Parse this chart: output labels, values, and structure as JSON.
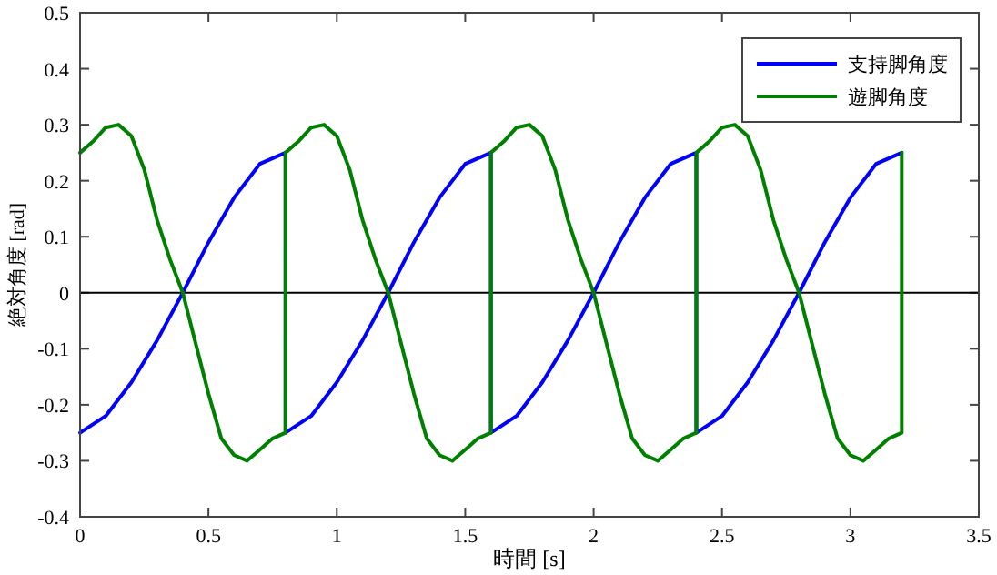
{
  "chart_data": {
    "type": "line",
    "xlabel": "時間 [s]",
    "ylabel": "絶対角度 [rad]",
    "xlim": [
      0,
      3.5
    ],
    "xticks": [
      0,
      0.5,
      1,
      1.5,
      2,
      2.5,
      3,
      3.5
    ],
    "ylim": [
      -0.4,
      0.5
    ],
    "yticks": [
      -0.4,
      -0.3,
      -0.2,
      -0.1,
      0,
      0.1,
      0.2,
      0.3,
      0.4,
      0.5
    ],
    "grid": false,
    "legend": "top right",
    "marker": "none",
    "line_style": "solid",
    "ref_lines": [
      {
        "axis": "y",
        "value": 0,
        "color": "#000000"
      }
    ],
    "series": [
      {
        "name": "支持脚角度",
        "color": "#0000ff",
        "x": [
          0,
          0.1,
          0.2,
          0.3,
          0.4,
          0.5,
          0.6,
          0.7,
          0.8,
          0.8,
          0.9,
          1.0,
          1.1,
          1.2,
          1.3,
          1.4,
          1.5,
          1.6,
          1.6,
          1.7,
          1.8,
          1.9,
          2.0,
          2.1,
          2.2,
          2.3,
          2.4,
          2.4,
          2.5,
          2.6,
          2.7,
          2.8,
          2.9,
          3.0,
          3.1,
          3.2
        ],
        "values": [
          -0.25,
          -0.22,
          -0.16,
          -0.085,
          0,
          0.09,
          0.17,
          0.23,
          0.25,
          -0.25,
          -0.22,
          -0.16,
          -0.085,
          0,
          0.09,
          0.17,
          0.23,
          0.25,
          -0.25,
          -0.22,
          -0.16,
          -0.085,
          0,
          0.09,
          0.17,
          0.23,
          0.25,
          -0.25,
          -0.22,
          -0.16,
          -0.085,
          0,
          0.09,
          0.17,
          0.23,
          0.25
        ]
      },
      {
        "name": "遊脚角度",
        "color": "#008000",
        "x": [
          0,
          0.05,
          0.1,
          0.15,
          0.2,
          0.25,
          0.3,
          0.35,
          0.4,
          0.45,
          0.5,
          0.55,
          0.6,
          0.65,
          0.7,
          0.75,
          0.8,
          0.8,
          0.85,
          0.9,
          0.95,
          1.0,
          1.05,
          1.1,
          1.15,
          1.2,
          1.25,
          1.3,
          1.35,
          1.4,
          1.45,
          1.5,
          1.55,
          1.6,
          1.6,
          1.65,
          1.7,
          1.75,
          1.8,
          1.85,
          1.9,
          1.95,
          2.0,
          2.05,
          2.1,
          2.15,
          2.2,
          2.25,
          2.3,
          2.35,
          2.4,
          2.4,
          2.45,
          2.5,
          2.55,
          2.6,
          2.65,
          2.7,
          2.75,
          2.8,
          2.85,
          2.9,
          2.95,
          3.0,
          3.05,
          3.1,
          3.15,
          3.2,
          3.2
        ],
        "values": [
          0.25,
          0.27,
          0.295,
          0.3,
          0.28,
          0.22,
          0.13,
          0.06,
          0,
          -0.09,
          -0.18,
          -0.26,
          -0.29,
          -0.3,
          -0.28,
          -0.26,
          -0.25,
          0.25,
          0.27,
          0.295,
          0.3,
          0.28,
          0.22,
          0.13,
          0.06,
          0,
          -0.09,
          -0.18,
          -0.26,
          -0.29,
          -0.3,
          -0.28,
          -0.26,
          -0.25,
          0.25,
          0.27,
          0.295,
          0.3,
          0.28,
          0.22,
          0.13,
          0.06,
          0,
          -0.09,
          -0.18,
          -0.26,
          -0.29,
          -0.3,
          -0.28,
          -0.26,
          -0.25,
          0.25,
          0.27,
          0.295,
          0.3,
          0.28,
          0.22,
          0.13,
          0.06,
          0,
          -0.09,
          -0.18,
          -0.26,
          -0.29,
          -0.3,
          -0.28,
          -0.26,
          -0.25,
          0.25
        ]
      }
    ]
  }
}
